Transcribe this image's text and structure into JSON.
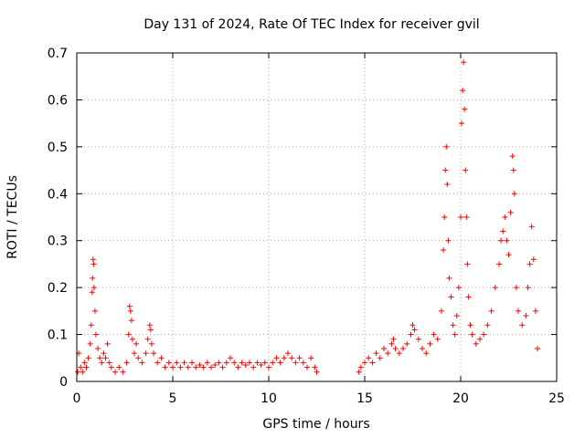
{
  "chart_data": {
    "type": "scatter",
    "title": "Day 131 of 2024, Rate Of TEC Index for receiver gvil",
    "xlabel": "GPS time / hours",
    "ylabel": "ROTI / TECUs",
    "xlim": [
      0,
      25
    ],
    "ylim": [
      0,
      0.7
    ],
    "xticks": [
      0,
      5,
      10,
      15,
      20,
      25
    ],
    "yticks": [
      0,
      0.1,
      0.2,
      0.3,
      0.4,
      0.5,
      0.6,
      0.7
    ],
    "xtick_labels": [
      "0",
      "5",
      "10",
      "15",
      "20",
      "25"
    ],
    "ytick_labels": [
      "0",
      "0.1",
      "0.2",
      "0.3",
      "0.4",
      "0.5",
      "0.6",
      "0.7"
    ],
    "grid": true,
    "marker": "+",
    "color": "#ff0000",
    "series": [
      {
        "name": "ROTI",
        "points": [
          [
            0.05,
            0.02
          ],
          [
            0.1,
            0.06
          ],
          [
            0.2,
            0.03
          ],
          [
            0.3,
            0.02
          ],
          [
            0.4,
            0.04
          ],
          [
            0.5,
            0.03
          ],
          [
            0.6,
            0.05
          ],
          [
            0.7,
            0.08
          ],
          [
            0.75,
            0.12
          ],
          [
            0.8,
            0.19
          ],
          [
            0.82,
            0.22
          ],
          [
            0.85,
            0.26
          ],
          [
            0.88,
            0.25
          ],
          [
            0.9,
            0.2
          ],
          [
            0.95,
            0.15
          ],
          [
            1.0,
            0.1
          ],
          [
            1.1,
            0.07
          ],
          [
            1.2,
            0.05
          ],
          [
            1.3,
            0.04
          ],
          [
            1.4,
            0.06
          ],
          [
            1.5,
            0.05
          ],
          [
            1.6,
            0.08
          ],
          [
            1.7,
            0.04
          ],
          [
            1.8,
            0.03
          ],
          [
            2.0,
            0.02
          ],
          [
            2.2,
            0.03
          ],
          [
            2.4,
            0.02
          ],
          [
            2.6,
            0.04
          ],
          [
            2.7,
            0.1
          ],
          [
            2.75,
            0.16
          ],
          [
            2.8,
            0.15
          ],
          [
            2.85,
            0.13
          ],
          [
            2.9,
            0.09
          ],
          [
            3.0,
            0.06
          ],
          [
            3.1,
            0.08
          ],
          [
            3.2,
            0.05
          ],
          [
            3.4,
            0.04
          ],
          [
            3.6,
            0.06
          ],
          [
            3.7,
            0.09
          ],
          [
            3.8,
            0.12
          ],
          [
            3.85,
            0.11
          ],
          [
            3.9,
            0.08
          ],
          [
            4.0,
            0.06
          ],
          [
            4.2,
            0.04
          ],
          [
            4.4,
            0.05
          ],
          [
            4.6,
            0.03
          ],
          [
            4.8,
            0.04
          ],
          [
            5.0,
            0.03
          ],
          [
            5.2,
            0.04
          ],
          [
            5.4,
            0.03
          ],
          [
            5.6,
            0.04
          ],
          [
            5.8,
            0.03
          ],
          [
            6.0,
            0.04
          ],
          [
            6.2,
            0.03
          ],
          [
            6.4,
            0.035
          ],
          [
            6.6,
            0.03
          ],
          [
            6.8,
            0.04
          ],
          [
            7.0,
            0.03
          ],
          [
            7.2,
            0.035
          ],
          [
            7.4,
            0.04
          ],
          [
            7.6,
            0.03
          ],
          [
            7.8,
            0.04
          ],
          [
            8.0,
            0.05
          ],
          [
            8.2,
            0.04
          ],
          [
            8.4,
            0.03
          ],
          [
            8.6,
            0.04
          ],
          [
            8.8,
            0.035
          ],
          [
            9.0,
            0.04
          ],
          [
            9.2,
            0.03
          ],
          [
            9.4,
            0.04
          ],
          [
            9.6,
            0.035
          ],
          [
            9.8,
            0.04
          ],
          [
            10.0,
            0.03
          ],
          [
            10.2,
            0.04
          ],
          [
            10.4,
            0.05
          ],
          [
            10.6,
            0.04
          ],
          [
            10.8,
            0.05
          ],
          [
            11.0,
            0.06
          ],
          [
            11.2,
            0.05
          ],
          [
            11.4,
            0.04
          ],
          [
            11.6,
            0.05
          ],
          [
            11.8,
            0.04
          ],
          [
            12.0,
            0.03
          ],
          [
            12.2,
            0.05
          ],
          [
            12.4,
            0.03
          ],
          [
            12.5,
            0.02
          ],
          [
            14.7,
            0.02
          ],
          [
            14.8,
            0.03
          ],
          [
            15.0,
            0.04
          ],
          [
            15.2,
            0.05
          ],
          [
            15.4,
            0.04
          ],
          [
            15.6,
            0.06
          ],
          [
            15.8,
            0.05
          ],
          [
            16.0,
            0.07
          ],
          [
            16.2,
            0.06
          ],
          [
            16.4,
            0.08
          ],
          [
            16.5,
            0.09
          ],
          [
            16.6,
            0.07
          ],
          [
            16.8,
            0.06
          ],
          [
            17.0,
            0.07
          ],
          [
            17.2,
            0.08
          ],
          [
            17.4,
            0.1
          ],
          [
            17.5,
            0.12
          ],
          [
            17.6,
            0.11
          ],
          [
            17.8,
            0.09
          ],
          [
            18.0,
            0.07
          ],
          [
            18.2,
            0.06
          ],
          [
            18.4,
            0.08
          ],
          [
            18.6,
            0.1
          ],
          [
            18.8,
            0.09
          ],
          [
            19.0,
            0.15
          ],
          [
            19.1,
            0.28
          ],
          [
            19.15,
            0.35
          ],
          [
            19.2,
            0.45
          ],
          [
            19.25,
            0.5
          ],
          [
            19.3,
            0.42
          ],
          [
            19.35,
            0.3
          ],
          [
            19.4,
            0.22
          ],
          [
            19.5,
            0.18
          ],
          [
            19.6,
            0.12
          ],
          [
            19.7,
            0.1
          ],
          [
            19.8,
            0.14
          ],
          [
            19.9,
            0.2
          ],
          [
            20.0,
            0.35
          ],
          [
            20.05,
            0.55
          ],
          [
            20.1,
            0.62
          ],
          [
            20.15,
            0.68
          ],
          [
            20.2,
            0.58
          ],
          [
            20.25,
            0.45
          ],
          [
            20.3,
            0.35
          ],
          [
            20.35,
            0.25
          ],
          [
            20.4,
            0.18
          ],
          [
            20.5,
            0.12
          ],
          [
            20.6,
            0.1
          ],
          [
            20.8,
            0.08
          ],
          [
            21.0,
            0.09
          ],
          [
            21.2,
            0.1
          ],
          [
            21.4,
            0.12
          ],
          [
            21.6,
            0.15
          ],
          [
            21.8,
            0.2
          ],
          [
            22.0,
            0.25
          ],
          [
            22.1,
            0.3
          ],
          [
            22.2,
            0.32
          ],
          [
            22.3,
            0.35
          ],
          [
            22.4,
            0.3
          ],
          [
            22.5,
            0.27
          ],
          [
            22.6,
            0.36
          ],
          [
            22.7,
            0.48
          ],
          [
            22.75,
            0.45
          ],
          [
            22.8,
            0.4
          ],
          [
            22.9,
            0.2
          ],
          [
            23.0,
            0.15
          ],
          [
            23.2,
            0.12
          ],
          [
            23.4,
            0.14
          ],
          [
            23.5,
            0.2
          ],
          [
            23.6,
            0.25
          ],
          [
            23.7,
            0.33
          ],
          [
            23.8,
            0.26
          ],
          [
            23.9,
            0.15
          ],
          [
            24.0,
            0.07
          ]
        ]
      }
    ]
  }
}
